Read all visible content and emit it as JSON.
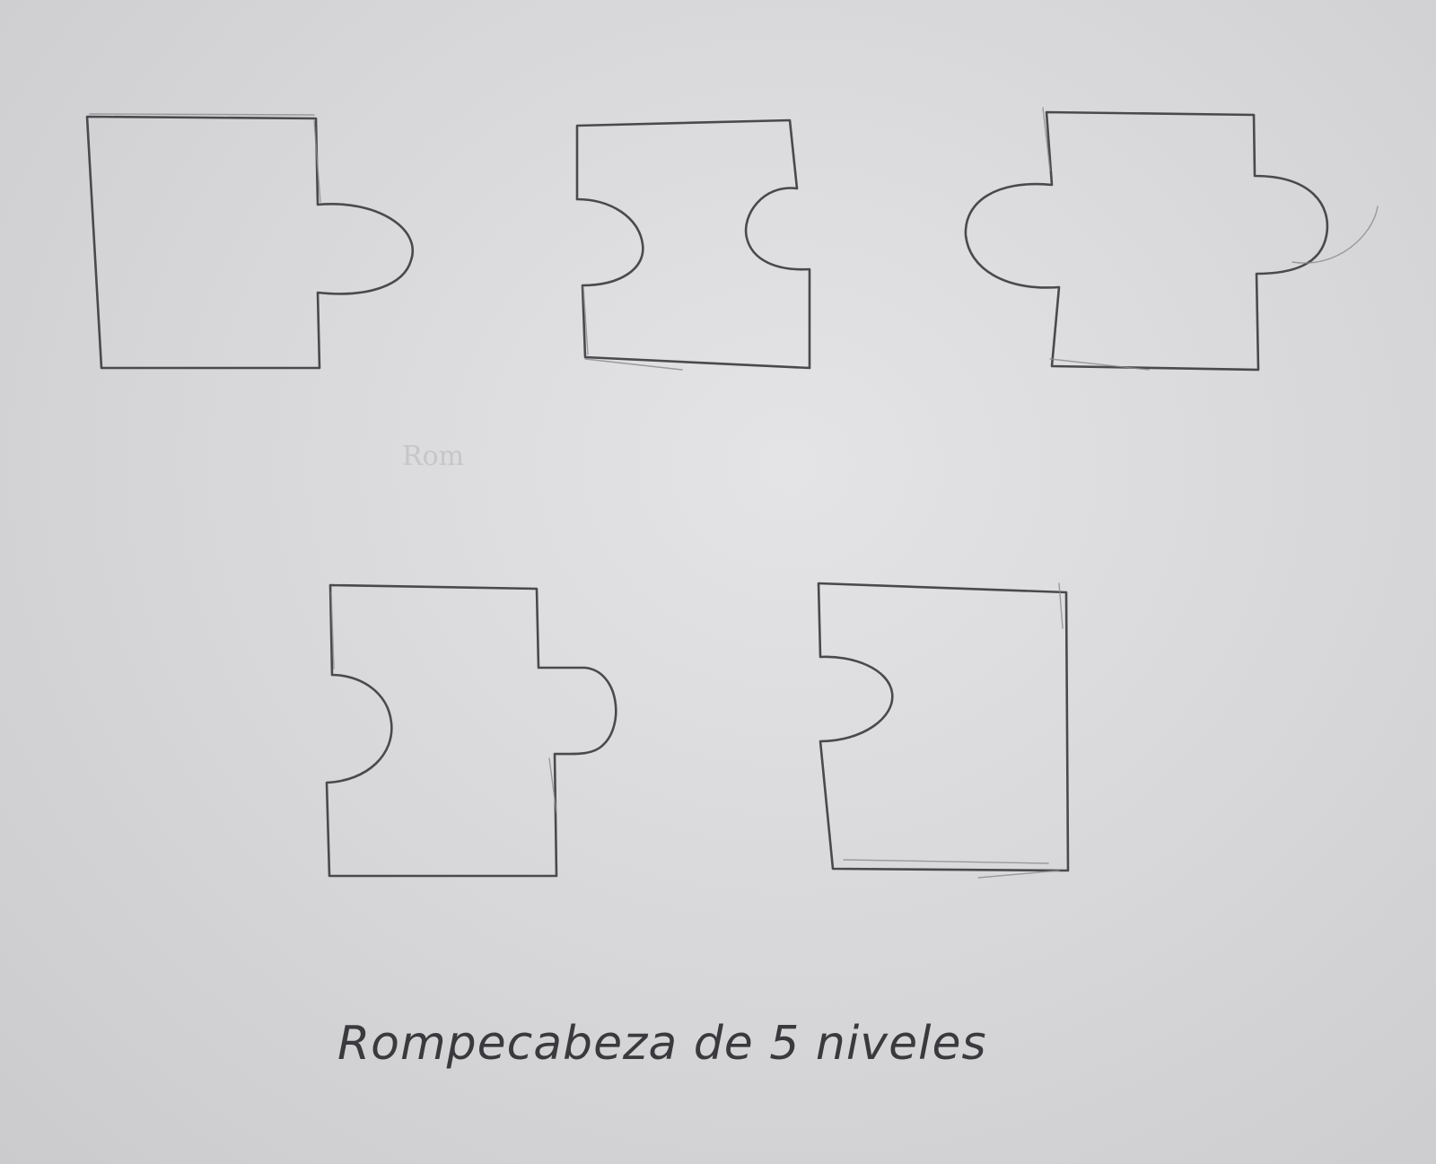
{
  "sketch": {
    "faint_note": "Rom",
    "caption": "Rompecabeza de 5 niveles",
    "ink_color": "#4a4a4e",
    "paper_color": "#dcdcde"
  },
  "pieces": [
    {
      "name": "piece-1",
      "left": "flat",
      "right": "tab"
    },
    {
      "name": "piece-2",
      "left": "blank",
      "right": "blank"
    },
    {
      "name": "piece-3",
      "left": "tab",
      "right": "tab"
    },
    {
      "name": "piece-4",
      "left": "blank",
      "right": "tab"
    },
    {
      "name": "piece-5",
      "left": "blank",
      "right": "flat"
    }
  ]
}
